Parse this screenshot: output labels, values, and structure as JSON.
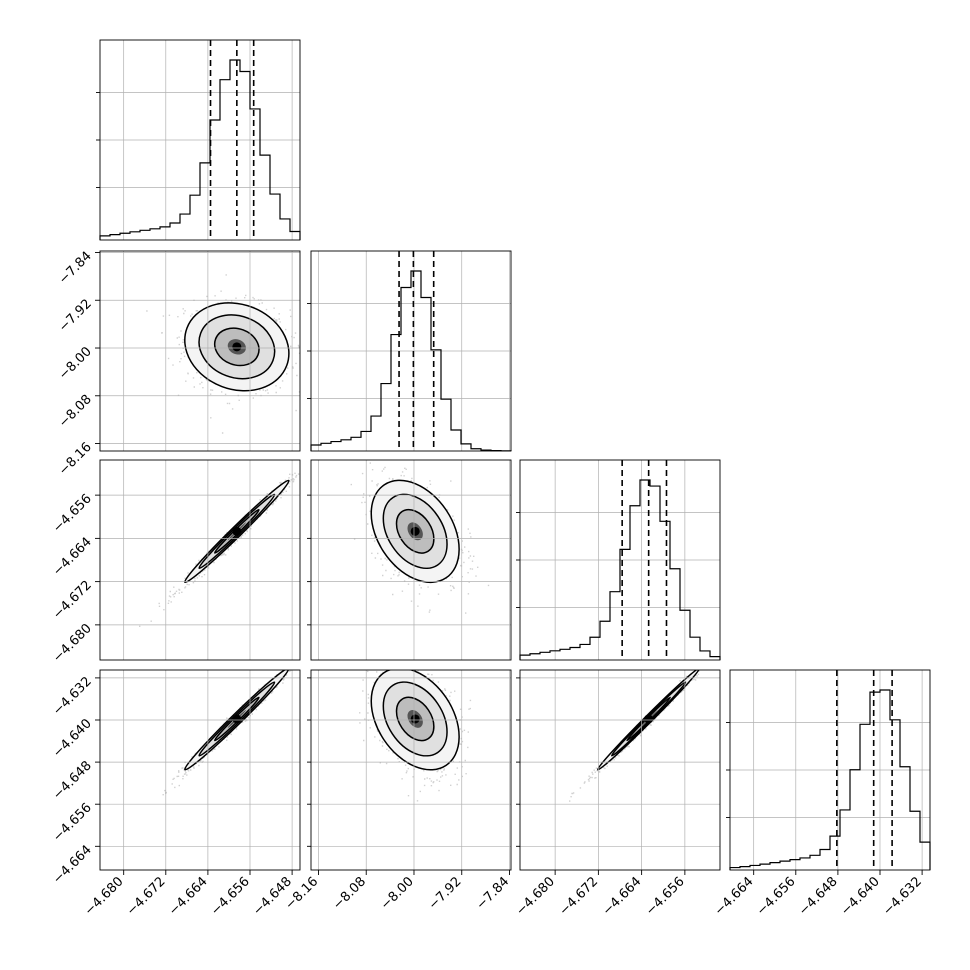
{
  "chart_data": {
    "type": "corner",
    "parameters": 4,
    "grid": true,
    "colors": {
      "line": "#000000",
      "grid": "#b0b0b0",
      "points": "#9a9a9a",
      "density": "#000000"
    },
    "ranges": [
      [
        -4.6845,
        -4.6465
      ],
      [
        -8.1725,
        -7.8375
      ],
      [
        -4.6865,
        -4.6495
      ],
      [
        -4.6685,
        -4.6305
      ]
    ],
    "ticks": [
      [
        "−4.680",
        "−4.672",
        "−4.664",
        "−4.656",
        "−4.648"
      ],
      [
        "−8.16",
        "−8.08",
        "−8.00",
        "−7.92",
        "−7.84"
      ],
      [
        "−4.680",
        "−4.672",
        "−4.664",
        "−4.656"
      ],
      [
        "−4.664",
        "−4.656",
        "−4.648",
        "−4.640",
        "−4.632"
      ]
    ],
    "tick_values": [
      [
        -4.68,
        -4.672,
        -4.664,
        -4.656,
        -4.648
      ],
      [
        -8.16,
        -8.08,
        -8.0,
        -7.92,
        -7.84
      ],
      [
        -4.68,
        -4.672,
        -4.664,
        -4.656
      ],
      [
        -4.664,
        -4.656,
        -4.648,
        -4.64,
        -4.632
      ]
    ],
    "marginals": [
      {
        "mean": -4.6585,
        "sd": 0.0043,
        "quantiles": [
          -4.6635,
          -4.6585,
          -4.6553
        ]
      },
      {
        "mean": -7.998,
        "sd": 0.032,
        "quantiles": [
          -8.025,
          -8.001,
          -7.967
        ]
      },
      {
        "mean": -4.6627,
        "sd": 0.0041,
        "quantiles": [
          -4.6676,
          -4.6627,
          -4.6594
        ]
      },
      {
        "mean": -4.6398,
        "sd": 0.0042,
        "quantiles": [
          -4.6482,
          -4.6412,
          -4.6377
        ]
      }
    ],
    "correlations": {
      "1-0": -0.15,
      "2-0": 0.99,
      "2-1": -0.35,
      "3-0": 0.99,
      "3-1": -0.35,
      "3-2": 0.995
    }
  }
}
